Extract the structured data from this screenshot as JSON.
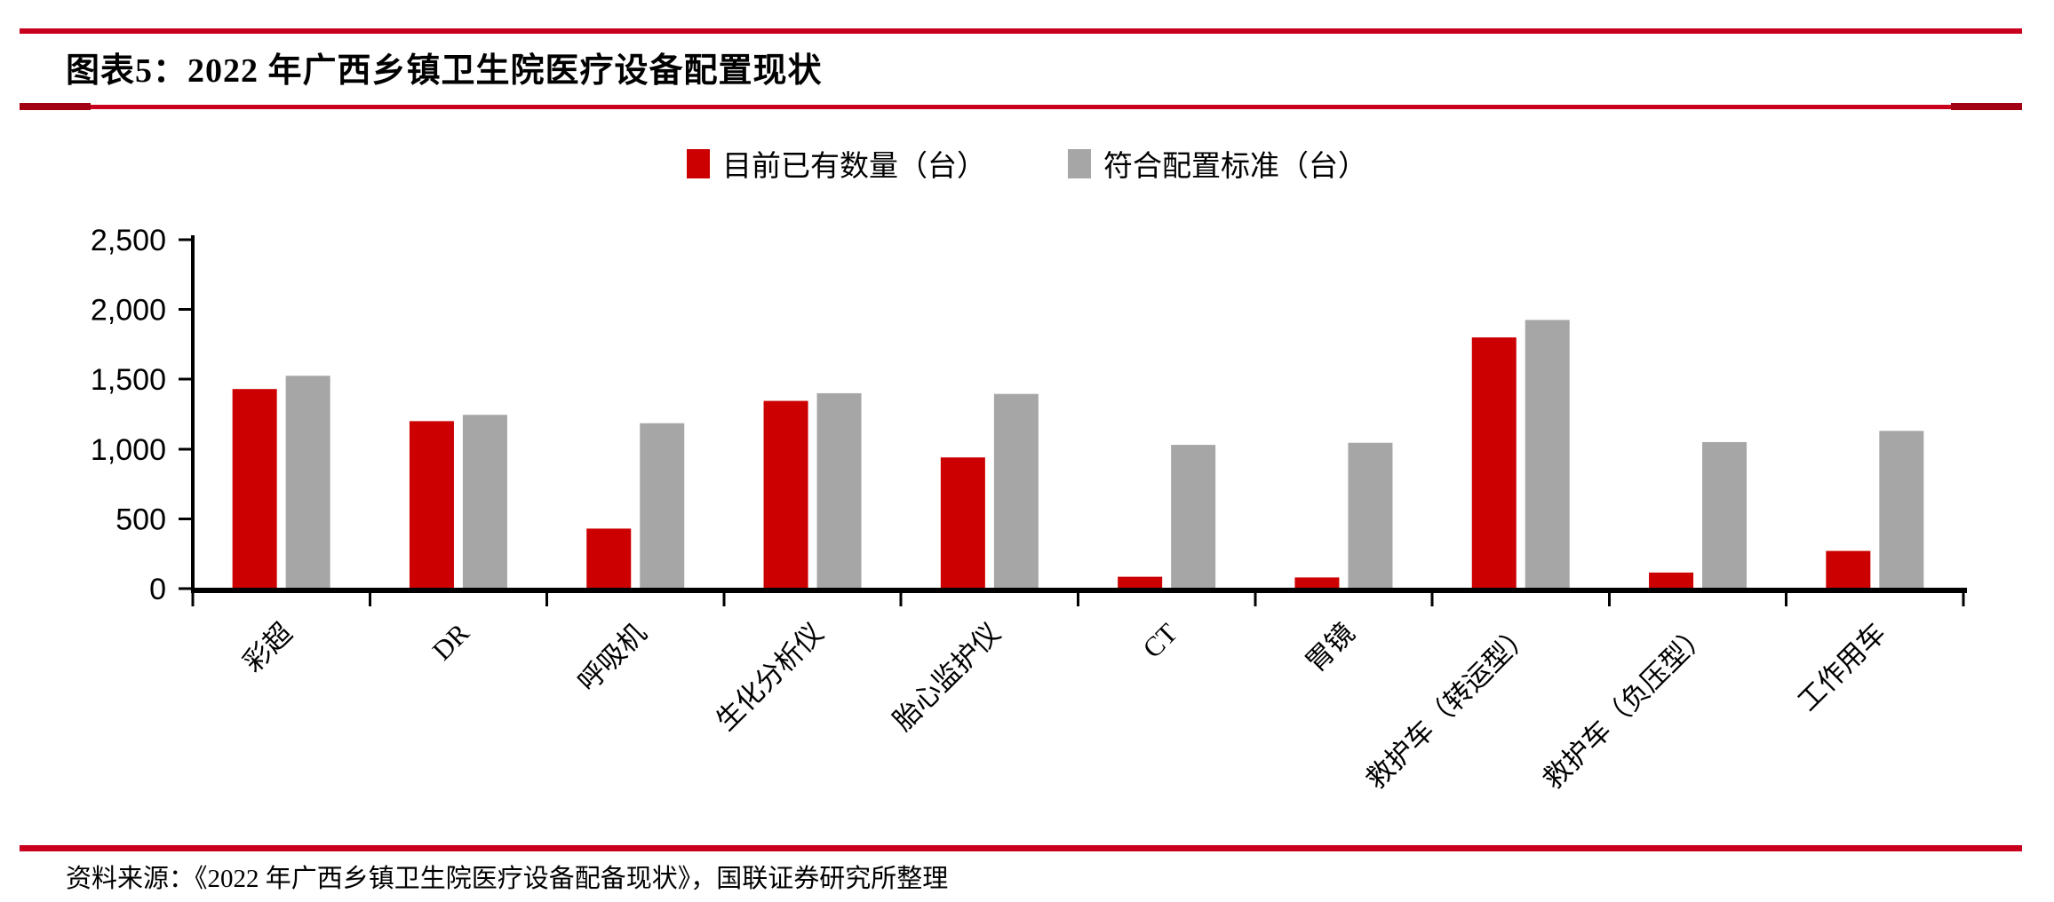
{
  "page": {
    "title": "图表5：2022 年广西乡镇卫生院医疗设备配置现状",
    "source": "资料来源：《2022 年广西乡镇卫生院医疗设备配备现状》，国联证券研究所整理"
  },
  "colors": {
    "accent_red": "#CC0000",
    "bar_gray": "#A6A6A6",
    "rule_red": "#C9001D",
    "axis_black": "#000000"
  },
  "chart_data": {
    "type": "bar",
    "title": "2022 年广西乡镇卫生院医疗设备配置现状",
    "categories": [
      "彩超",
      "DR",
      "呼吸机",
      "生化分析仪",
      "胎心监护仪",
      "CT",
      "胃镜",
      "救护车（转运型）",
      "救护车（负压型）",
      "工作用车"
    ],
    "series": [
      {
        "name": "目前已有数量（台）",
        "color": "#CC0000",
        "values": [
          1430,
          1200,
          430,
          1345,
          940,
          85,
          80,
          1800,
          115,
          270
        ]
      },
      {
        "name": "符合配置标准（台）",
        "color": "#A6A6A6",
        "values": [
          1525,
          1245,
          1185,
          1400,
          1395,
          1030,
          1045,
          1925,
          1050,
          1130
        ]
      }
    ],
    "xlabel": "",
    "ylabel": "",
    "ylim": [
      0,
      2500
    ],
    "yticks": [
      0,
      500,
      1000,
      1500,
      2000,
      2500
    ],
    "ytick_labels": [
      "0",
      "500",
      "1,000",
      "1,500",
      "2,000",
      "2,500"
    ],
    "grid": false,
    "legend_position": "top-center",
    "x_label_rotation": -45
  }
}
